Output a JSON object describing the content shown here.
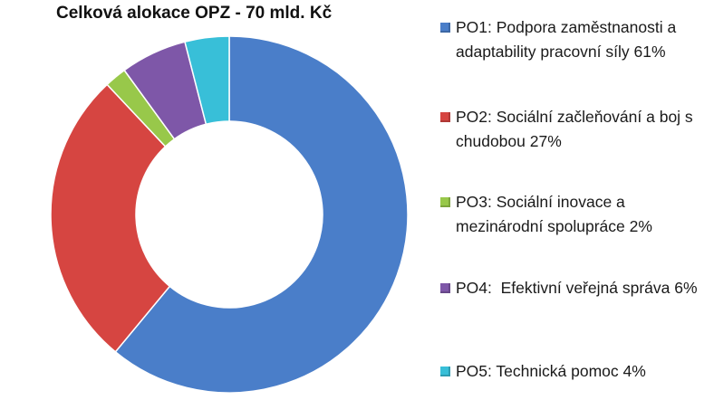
{
  "chart_data": {
    "type": "pie",
    "title": "Celková alokace OPZ - 70 mld. Kč",
    "legend_position": "right",
    "slices": [
      {
        "label": "PO1: Podpora zaměstnanosti a adaptability pracovní síly 61%",
        "value": 61,
        "color": "#4A7EC9"
      },
      {
        "label": "PO2: Sociální začleňování a boj s chudobou 27%",
        "value": 27,
        "color": "#D64541"
      },
      {
        "label": "PO3: Sociální inovace a mezinárodní spolupráce 2%",
        "value": 2,
        "color": "#98C84A"
      },
      {
        "label": "PO4:  Efektivní veřejná správa 6%",
        "value": 6,
        "color": "#7E57A8"
      },
      {
        "label": "PO5: Technická pomoc 4%",
        "value": 4,
        "color": "#38BFD8"
      }
    ]
  }
}
